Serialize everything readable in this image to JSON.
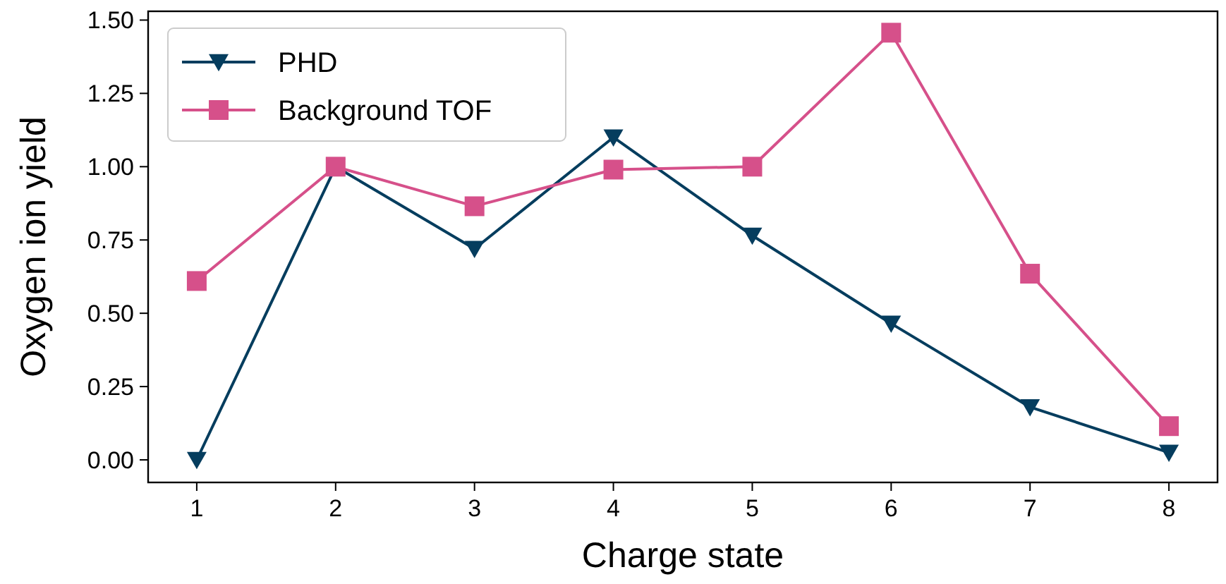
{
  "chart_data": {
    "type": "line",
    "xlabel": "Charge state",
    "ylabel": "Oxygen ion yield",
    "x": [
      1,
      2,
      3,
      4,
      5,
      6,
      7,
      8
    ],
    "series": [
      {
        "name": "PHD",
        "color": "#053d5e",
        "marker": "triangle-down",
        "values": [
          0.0,
          1.0,
          0.72,
          1.1,
          0.765,
          0.465,
          0.18,
          0.025
        ]
      },
      {
        "name": "Background TOF",
        "color": "#d6508a",
        "marker": "square",
        "values": [
          0.61,
          1.0,
          0.865,
          0.99,
          1.0,
          1.457,
          0.635,
          0.115
        ]
      }
    ],
    "xlim": [
      0.65,
      8.35
    ],
    "xticks": [
      1,
      2,
      3,
      4,
      5,
      6,
      7,
      8
    ],
    "ylim": [
      -0.077,
      1.53
    ],
    "yticks": [
      {
        "value": 0,
        "label": "0.00"
      },
      {
        "value": 0.25,
        "label": "0.25"
      },
      {
        "value": 0.5,
        "label": "0.50"
      },
      {
        "value": 0.75,
        "label": "0.75"
      },
      {
        "value": 1,
        "label": "1.00"
      },
      {
        "value": 1.25,
        "label": "1.25"
      },
      {
        "value": 1.5,
        "label": "1.50"
      }
    ],
    "grid": false,
    "legend": "top left"
  }
}
